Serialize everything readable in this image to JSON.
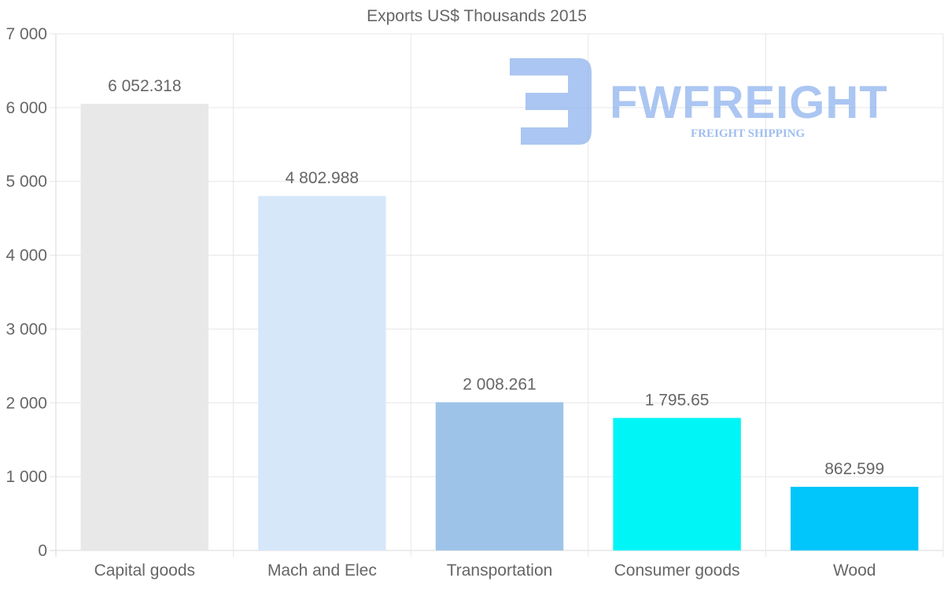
{
  "chart_data": {
    "type": "bar",
    "title": "Exports US$ Thousands 2015",
    "categories": [
      "Capital goods",
      "Mach and Elec",
      "Transportation",
      "Consumer goods",
      "Wood"
    ],
    "values": [
      6052.318,
      4802.988,
      2008.261,
      1795.65,
      862.599
    ],
    "value_labels": [
      "6 052.318",
      "4 802.988",
      "2 008.261",
      "1 795.65",
      "862.599"
    ],
    "bar_colors": [
      "#e8e8e8",
      "#d6e7fa",
      "#9dc4e8",
      "#00f5f7",
      "#00c6fb"
    ],
    "ylim": [
      0,
      7000
    ],
    "yticks": [
      0,
      1000,
      2000,
      3000,
      4000,
      5000,
      6000,
      7000
    ],
    "ytick_labels": [
      "0",
      "1 000",
      "2 000",
      "3 000",
      "4 000",
      "5 000",
      "6 000",
      "7 000"
    ],
    "xlabel": "",
    "ylabel": "",
    "grid": true,
    "legend": "none"
  },
  "watermark": {
    "brand": "FWFREIGHT",
    "tagline": "FREIGHT SHIPPING",
    "color": "#8fb3ee"
  }
}
